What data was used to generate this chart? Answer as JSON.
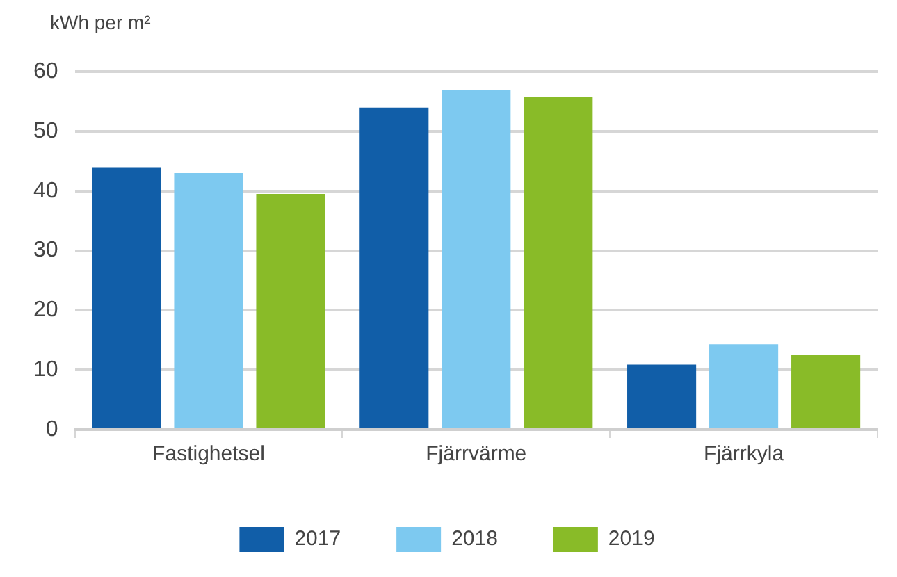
{
  "chart_data": {
    "type": "bar",
    "ylabel": "kWh per m²",
    "categories": [
      "Fastighetsel",
      "Fjärrvärme",
      "Fjärrkyla"
    ],
    "series": [
      {
        "name": "2017",
        "color": "#115ea8",
        "values": [
          44,
          54,
          10.9
        ]
      },
      {
        "name": "2018",
        "color": "#7dc9f0",
        "values": [
          43,
          57,
          14.3
        ]
      },
      {
        "name": "2019",
        "color": "#89bb28",
        "values": [
          39.5,
          55.7,
          12.6
        ]
      }
    ],
    "ylim": [
      0,
      60
    ],
    "yticks": [
      0,
      10,
      20,
      30,
      40,
      50,
      60
    ],
    "grid": "y",
    "legend": "bottom"
  }
}
